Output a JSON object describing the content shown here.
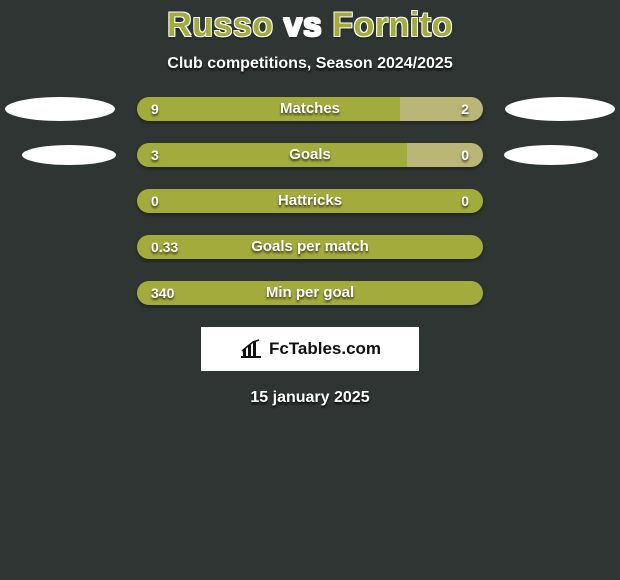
{
  "title_full": "Russo vs Fornito",
  "title_left": "Russo",
  "title_sep": " vs ",
  "title_right": "Fornito",
  "subtitle": "Club competitions, Season 2024/2025",
  "date": "15 january 2025",
  "logo_text": "FcTables.com",
  "colors": {
    "background": "#2f3533",
    "title_left": "#a2ac3c",
    "title_sep": "#ffffff",
    "title_right": "#a2ac3c",
    "player_left": "#a2ac3c",
    "player_right": "#bab676",
    "logo_bg": "#ffffff"
  },
  "rows": [
    {
      "label": "Matches",
      "left_value": "9",
      "right_value": "2",
      "left_pct": 76,
      "right_pct": 24,
      "show_left_ellipse": true,
      "show_right_ellipse": true,
      "ellipse_small": false
    },
    {
      "label": "Goals",
      "left_value": "3",
      "right_value": "0",
      "left_pct": 78,
      "right_pct": 22,
      "show_left_ellipse": true,
      "show_right_ellipse": true,
      "ellipse_small": true
    },
    {
      "label": "Hattricks",
      "left_value": "0",
      "right_value": "0",
      "left_pct": 100,
      "right_pct": 0,
      "show_left_ellipse": false,
      "show_right_ellipse": false,
      "ellipse_small": false
    },
    {
      "label": "Goals per match",
      "left_value": "0.33",
      "right_value": "",
      "left_pct": 100,
      "right_pct": 0,
      "show_left_ellipse": false,
      "show_right_ellipse": false,
      "ellipse_small": false
    },
    {
      "label": "Min per goal",
      "left_value": "340",
      "right_value": "",
      "left_pct": 100,
      "right_pct": 0,
      "show_left_ellipse": false,
      "show_right_ellipse": false,
      "ellipse_small": false
    }
  ]
}
